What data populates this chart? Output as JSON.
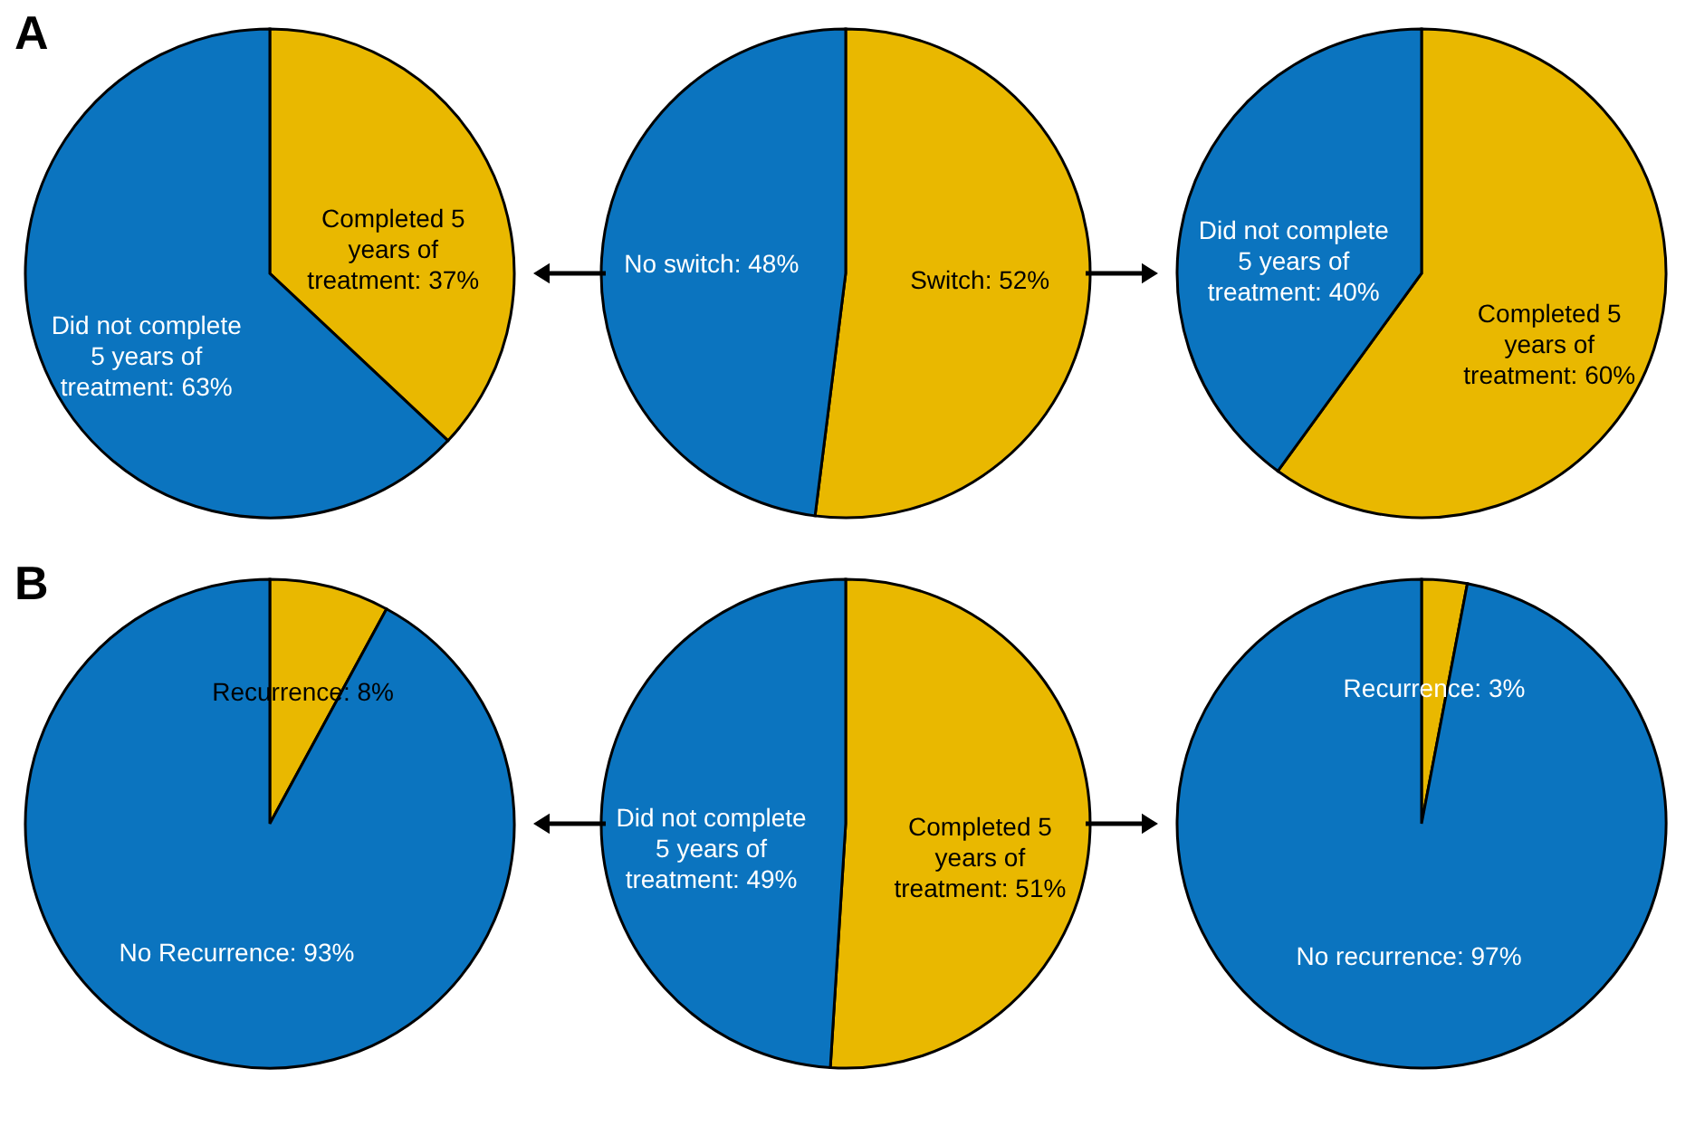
{
  "chart_data": [
    {
      "type": "pie",
      "title": "A",
      "categories": [
        "Completed 5 years of treatment",
        "Did not complete 5 years of treatment"
      ],
      "values": [
        37,
        63
      ],
      "value_labels": [
        "37%",
        "63%"
      ],
      "colors": [
        "#e9b800",
        "#0b74bf"
      ]
    },
    {
      "type": "pie",
      "categories": [
        "Switch",
        "No switch"
      ],
      "values": [
        52,
        48
      ],
      "value_labels": [
        "52%",
        "48%"
      ],
      "colors": [
        "#e9b800",
        "#0b74bf"
      ]
    },
    {
      "type": "pie",
      "categories": [
        "Completed 5 years of treatment",
        "Did not complete 5 years of treatment"
      ],
      "values": [
        60,
        40
      ],
      "value_labels": [
        "60%",
        "40%"
      ],
      "colors": [
        "#e9b800",
        "#0b74bf"
      ]
    },
    {
      "type": "pie",
      "title": "B",
      "categories": [
        "Recurrence",
        "No Recurrence"
      ],
      "values": [
        8,
        93
      ],
      "value_labels": [
        "8%",
        "93%"
      ],
      "colors": [
        "#e9b800",
        "#0b74bf"
      ]
    },
    {
      "type": "pie",
      "categories": [
        "Completed 5 years of treatment",
        "Did not complete 5 years of treatment"
      ],
      "values": [
        51,
        49
      ],
      "value_labels": [
        "51%",
        "49%"
      ],
      "colors": [
        "#e9b800",
        "#0b74bf"
      ]
    },
    {
      "type": "pie",
      "categories": [
        "Recurrence",
        "No recurrence"
      ],
      "values": [
        3,
        97
      ],
      "value_labels": [
        "3%",
        "97%"
      ],
      "colors": [
        "#e9b800",
        "#0b74bf"
      ]
    }
  ]
}
